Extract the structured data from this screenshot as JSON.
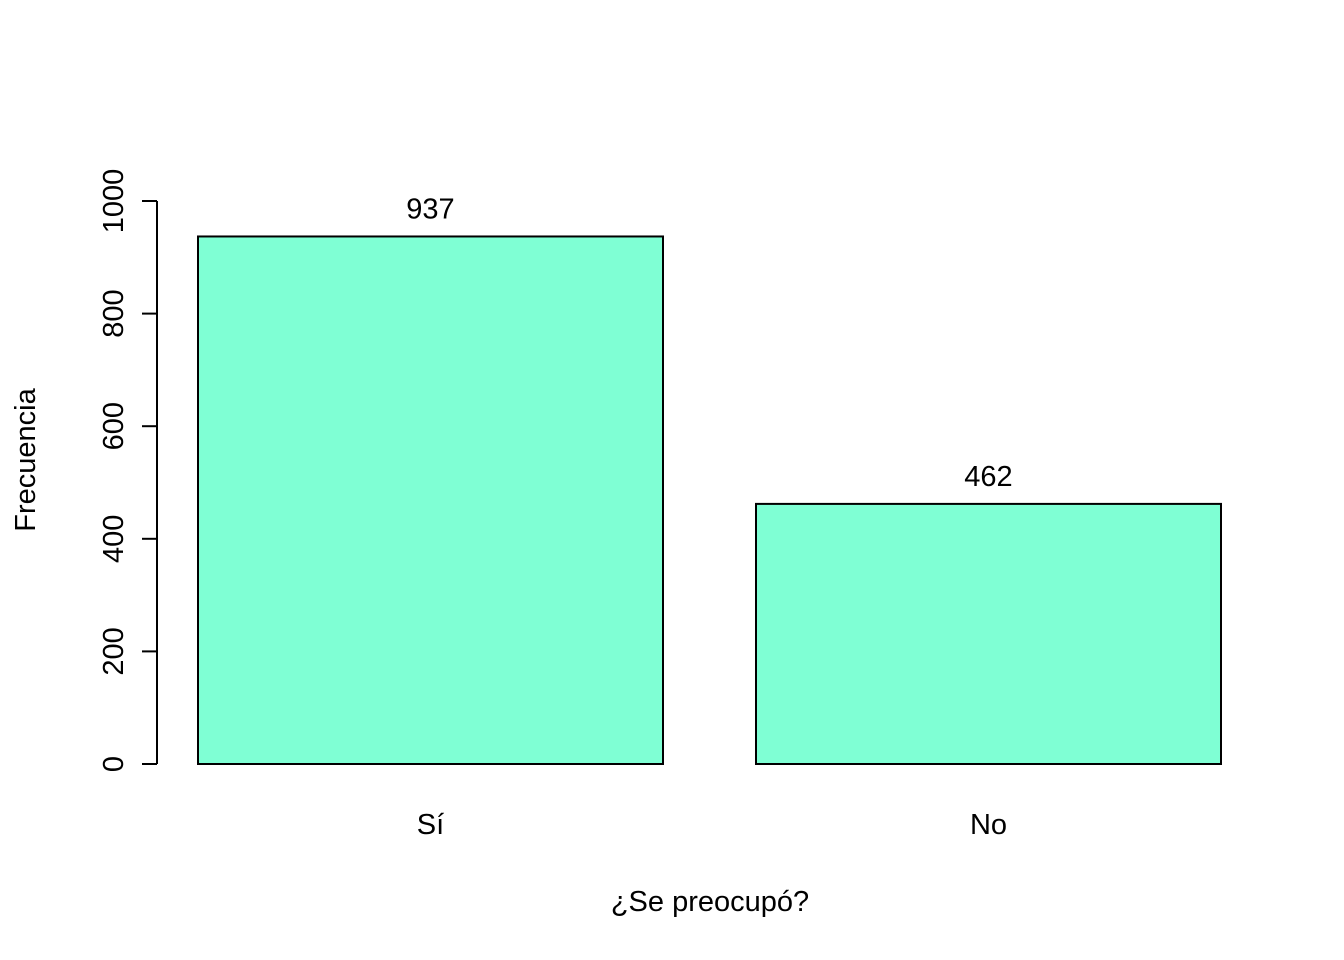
{
  "chart_data": {
    "type": "bar",
    "title": "",
    "xlabel": "¿Se preocupó?",
    "ylabel": "Frecuencia",
    "categories": [
      "Sí",
      "No"
    ],
    "values": [
      937,
      462
    ],
    "data_labels": [
      "937",
      "462"
    ],
    "ylim": [
      0,
      1000
    ],
    "yticks": [
      0,
      200,
      400,
      600,
      800,
      1000
    ],
    "ytick_labels": [
      "0",
      "200",
      "400",
      "600",
      "800",
      "1000"
    ],
    "grid": false,
    "legend": "none",
    "colors": {
      "bar_fill": "#7FFFD4",
      "bar_stroke": "#000000",
      "axis": "#000000",
      "text": "#000000",
      "background": "#FFFFFF"
    }
  }
}
